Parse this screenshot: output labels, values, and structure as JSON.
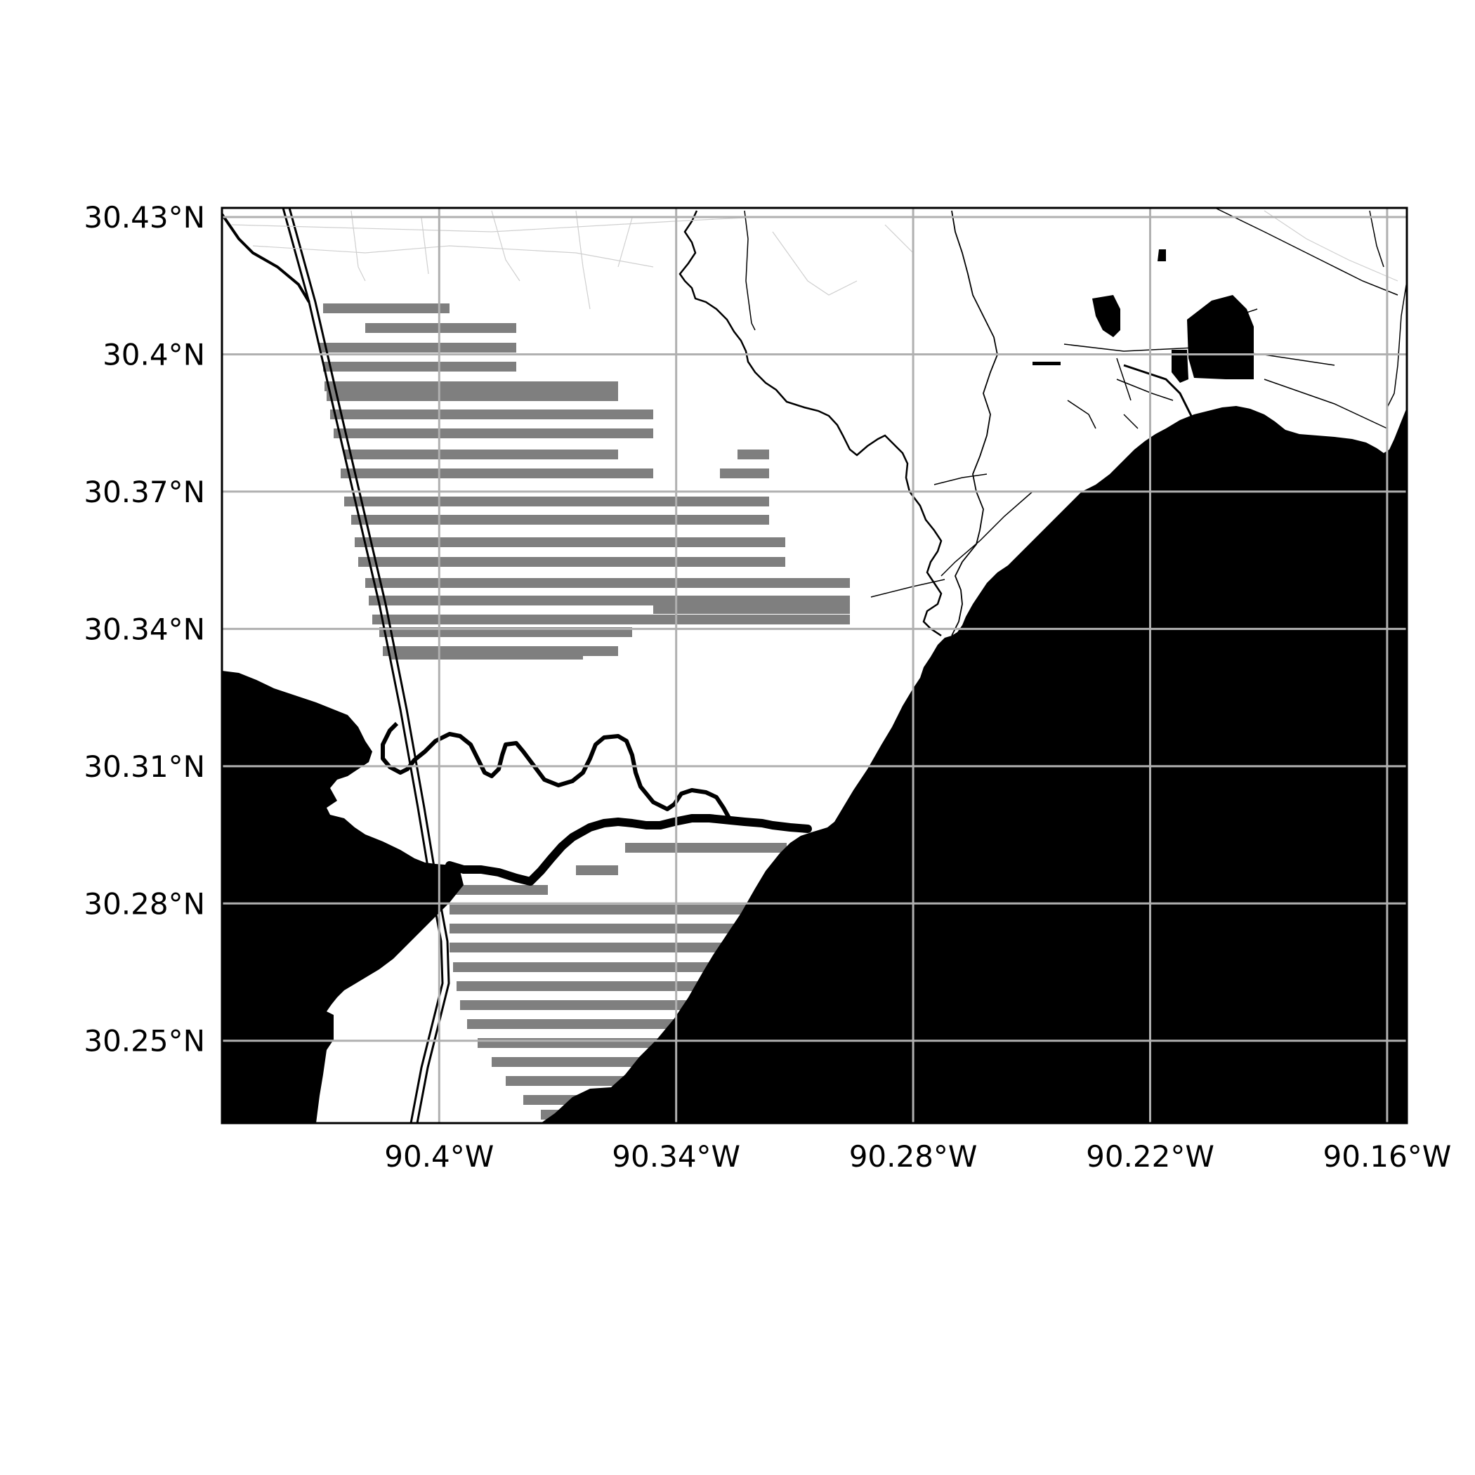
{
  "map": {
    "lon_range": [
      -90.455,
      -90.155
    ],
    "lat_range": [
      30.232,
      30.432
    ],
    "x_ticks": [
      {
        "value": -90.4,
        "label": "90.4°W"
      },
      {
        "value": -90.34,
        "label": "90.34°W"
      },
      {
        "value": -90.28,
        "label": "90.28°W"
      },
      {
        "value": -90.22,
        "label": "90.22°W"
      },
      {
        "value": -90.16,
        "label": "90.16°W"
      }
    ],
    "y_ticks": [
      {
        "value": 30.43,
        "label": "30.43°N"
      },
      {
        "value": 30.4,
        "label": "30.4°N"
      },
      {
        "value": 30.37,
        "label": "30.37°N"
      },
      {
        "value": 30.34,
        "label": "30.34°N"
      },
      {
        "value": 30.31,
        "label": "30.31°N"
      },
      {
        "value": 30.28,
        "label": "30.28°N"
      },
      {
        "value": 30.25,
        "label": "30.25°N"
      }
    ],
    "grid": true,
    "colors": {
      "water": "#000000",
      "land": "#ffffff",
      "hatch": "#7f7f7f",
      "grid": "#b0b0b0",
      "frame": "#000000",
      "roads": "#000000"
    },
    "features": [
      "lake-water",
      "river",
      "highway",
      "protected-area-hatching",
      "roads"
    ]
  }
}
